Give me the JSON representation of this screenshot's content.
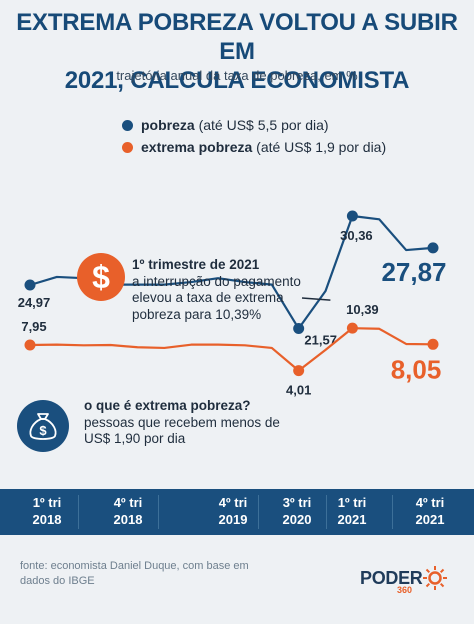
{
  "header": {
    "title": "EXTREMA POBREZA VOLTOU A SUBIR EM\n2021, CALCULA ECONOMISTA",
    "subtitle": "trajetória anual da taxa de pobreza, em %"
  },
  "legend": {
    "items": [
      {
        "bold": "pobreza",
        "rest": " (até US$ 5,5 por dia)",
        "color": "#1a4f7e"
      },
      {
        "bold": "extrema pobreza",
        "rest": " (até US$ 1,9 por dia)",
        "color": "#e8602a"
      }
    ]
  },
  "notes": {
    "quarter": {
      "icon": "dollar-icon",
      "symbol": "$",
      "title": "1º trimestre de 2021",
      "text": "a interrupção do pagamento elevou a taxa de extrema pobreza para 10,39%"
    },
    "definition": {
      "icon": "money-bag-icon",
      "title": "o que é extrema pobreza?",
      "text": "pessoas que recebem menos de US$ 1,90 por dia"
    }
  },
  "axis": {
    "ticks": [
      {
        "top": "1º tri",
        "bottom": "2018"
      },
      {
        "top": "4º tri",
        "bottom": "2018"
      },
      {
        "top": "4º tri",
        "bottom": "2019"
      },
      {
        "top": "3º tri",
        "bottom": "2020"
      },
      {
        "top": "1º tri",
        "bottom": "2021"
      },
      {
        "top": "4º tri",
        "bottom": "2021"
      }
    ]
  },
  "footer": {
    "source": "fonte: economista Daniel Duque, com base em dados do IBGE",
    "logo": "PODER",
    "logo_sub": "360"
  },
  "colors": {
    "pobreza": "#1a4f7e",
    "extrema": "#e8602a",
    "title": "#174a78"
  },
  "chart_data": {
    "type": "line",
    "title": "EXTREMA POBREZA VOLTOU A SUBIR EM 2021, CALCULA ECONOMISTA",
    "subtitle": "trajetória anual da taxa de pobreza, em %",
    "x": [
      "1º tri 2018",
      "2º tri 2018",
      "3º tri 2018",
      "4º tri 2018",
      "1º tri 2019",
      "2º tri 2019",
      "3º tri 2019",
      "4º tri 2019",
      "1º tri 2020",
      "2º tri 2020",
      "3º tri 2020",
      "4º tri 2020",
      "1º tri 2021",
      "2º tri 2021",
      "3º tri 2021",
      "4º tri 2021"
    ],
    "tick_positions": [
      0,
      3,
      7,
      10,
      12,
      15
    ],
    "series": [
      {
        "name": "pobreza",
        "color": "#1a4f7e",
        "values": [
          24.97,
          25.6,
          25.5,
          25.0,
          25.0,
          25.0,
          25.2,
          25.5,
          25.2,
          25.0,
          21.57,
          24.5,
          30.36,
          30.1,
          27.7,
          27.87
        ],
        "labels": [
          {
            "index": 0,
            "text": "24,97"
          },
          {
            "index": 10,
            "text": "21,57"
          },
          {
            "index": 12,
            "text": "30,36"
          },
          {
            "index": 15,
            "text": "27,87",
            "big": true
          }
        ]
      },
      {
        "name": "extrema pobreza",
        "color": "#e8602a",
        "values": [
          7.95,
          8.0,
          7.9,
          7.95,
          7.6,
          7.5,
          8.0,
          8.0,
          7.9,
          7.5,
          4.01,
          7.2,
          10.39,
          10.3,
          8.1,
          8.05
        ],
        "labels": [
          {
            "index": 0,
            "text": "7,95"
          },
          {
            "index": 10,
            "text": "4,01"
          },
          {
            "index": 12,
            "text": "10,39"
          },
          {
            "index": 15,
            "text": "8,05",
            "big": true
          }
        ]
      }
    ],
    "grid": false,
    "legend": "top"
  }
}
